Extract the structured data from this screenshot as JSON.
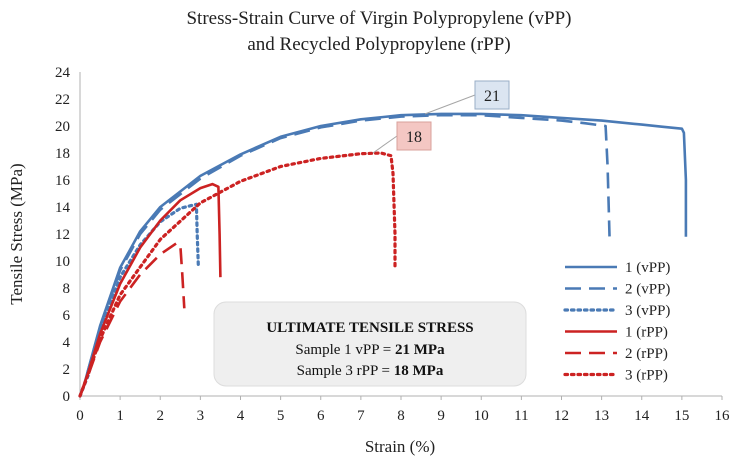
{
  "chart_data": {
    "type": "line",
    "title": "Stress-Strain Curve of Virgin Polypropylene (vPP)",
    "subtitle": "and Recycled Polypropylene (rPP)",
    "xlabel": "Strain (%)",
    "ylabel": "Tensile Stress (MPa)",
    "xlim": [
      0,
      16
    ],
    "ylim": [
      0,
      24
    ],
    "x_ticks": [
      "0",
      "1",
      "2",
      "3",
      "4",
      "5",
      "6",
      "7",
      "8",
      "9",
      "10",
      "11",
      "12",
      "13",
      "14",
      "15",
      "16"
    ],
    "y_ticks": [
      "0",
      "2",
      "4",
      "6",
      "8",
      "10",
      "12",
      "14",
      "16",
      "18",
      "20",
      "22",
      "24"
    ],
    "grid": false,
    "legend_position": "bottom-right",
    "series": [
      {
        "name": "1 (vPP)",
        "color": "#4a7ab5",
        "dash": "solid",
        "x": [
          0,
          0.1,
          0.5,
          1,
          1.5,
          2,
          3,
          4,
          5,
          6,
          7,
          8,
          9,
          10,
          11,
          12,
          13,
          14,
          14.5,
          15.0,
          15.05,
          15.1,
          15.1
        ],
        "y": [
          0,
          0.8,
          5.2,
          9.5,
          12.2,
          14.0,
          16.3,
          17.9,
          19.2,
          20.0,
          20.5,
          20.8,
          20.9,
          20.9,
          20.8,
          20.6,
          20.4,
          20.1,
          19.95,
          19.8,
          19.5,
          16,
          11.8
        ]
      },
      {
        "name": "2 (vPP)",
        "color": "#4a7ab5",
        "dash": "long-dash",
        "x": [
          0,
          0.1,
          0.5,
          1,
          1.5,
          2,
          3,
          4,
          5,
          6,
          7,
          8,
          9,
          10,
          11,
          12,
          12.6,
          13.1,
          13.15,
          13.2
        ],
        "y": [
          0,
          0.8,
          5.1,
          9.3,
          12.0,
          13.8,
          16.1,
          17.8,
          19.1,
          19.9,
          20.4,
          20.7,
          20.8,
          20.8,
          20.6,
          20.4,
          20.2,
          20.0,
          17,
          11.6
        ]
      },
      {
        "name": "3 (vPP)",
        "color": "#4a7ab5",
        "dash": "dotted",
        "x": [
          0,
          0.2,
          0.5,
          1,
          1.5,
          2,
          2.5,
          2.9,
          2.92,
          2.95
        ],
        "y": [
          0,
          1.5,
          4.8,
          8.8,
          11.2,
          12.9,
          13.9,
          14.2,
          12,
          9.5
        ]
      },
      {
        "name": "1 (rPP)",
        "color": "#cc2222",
        "dash": "solid",
        "x": [
          0,
          0.2,
          0.5,
          1,
          1.5,
          2,
          2.5,
          3,
          3.3,
          3.45,
          3.48,
          3.5
        ],
        "y": [
          0,
          1.7,
          4.6,
          8.3,
          11.0,
          13.0,
          14.5,
          15.4,
          15.7,
          15.5,
          12,
          8.8
        ]
      },
      {
        "name": "2 (rPP)",
        "color": "#cc2222",
        "dash": "long-dash",
        "x": [
          0,
          0.2,
          0.5,
          1,
          1.5,
          2,
          2.4,
          2.5,
          2.55,
          2.6
        ],
        "y": [
          0,
          1.5,
          4.0,
          7.0,
          9.0,
          10.5,
          11.3,
          11.2,
          9,
          6.5
        ]
      },
      {
        "name": "3 (rPP)",
        "color": "#cc2222",
        "dash": "dotted",
        "x": [
          0,
          0.2,
          0.5,
          1,
          2,
          3,
          4,
          5,
          6,
          7,
          7.5,
          7.75,
          7.8,
          7.85,
          7.85
        ],
        "y": [
          0,
          1.6,
          4.2,
          7.5,
          11.6,
          14.3,
          15.9,
          17.0,
          17.6,
          17.95,
          18.0,
          17.8,
          16.5,
          12,
          9.5
        ]
      }
    ],
    "annotations": [
      {
        "label": "21",
        "x": 8.6,
        "y": 20.9,
        "fill": "#dbe5f1",
        "stroke": "#9aaec6"
      },
      {
        "label": "18",
        "x": 7.3,
        "y": 18.0,
        "fill": "#f4c7c3",
        "stroke": "#d9a09b"
      }
    ]
  },
  "info_box": {
    "heading": "ULTIMATE TENSILE STRESS",
    "line1_prefix": "Sample 1 vPP = ",
    "line1_value": "21 MPa",
    "line2_prefix": "Sample 3 rPP = ",
    "line2_value": "18 MPa"
  }
}
